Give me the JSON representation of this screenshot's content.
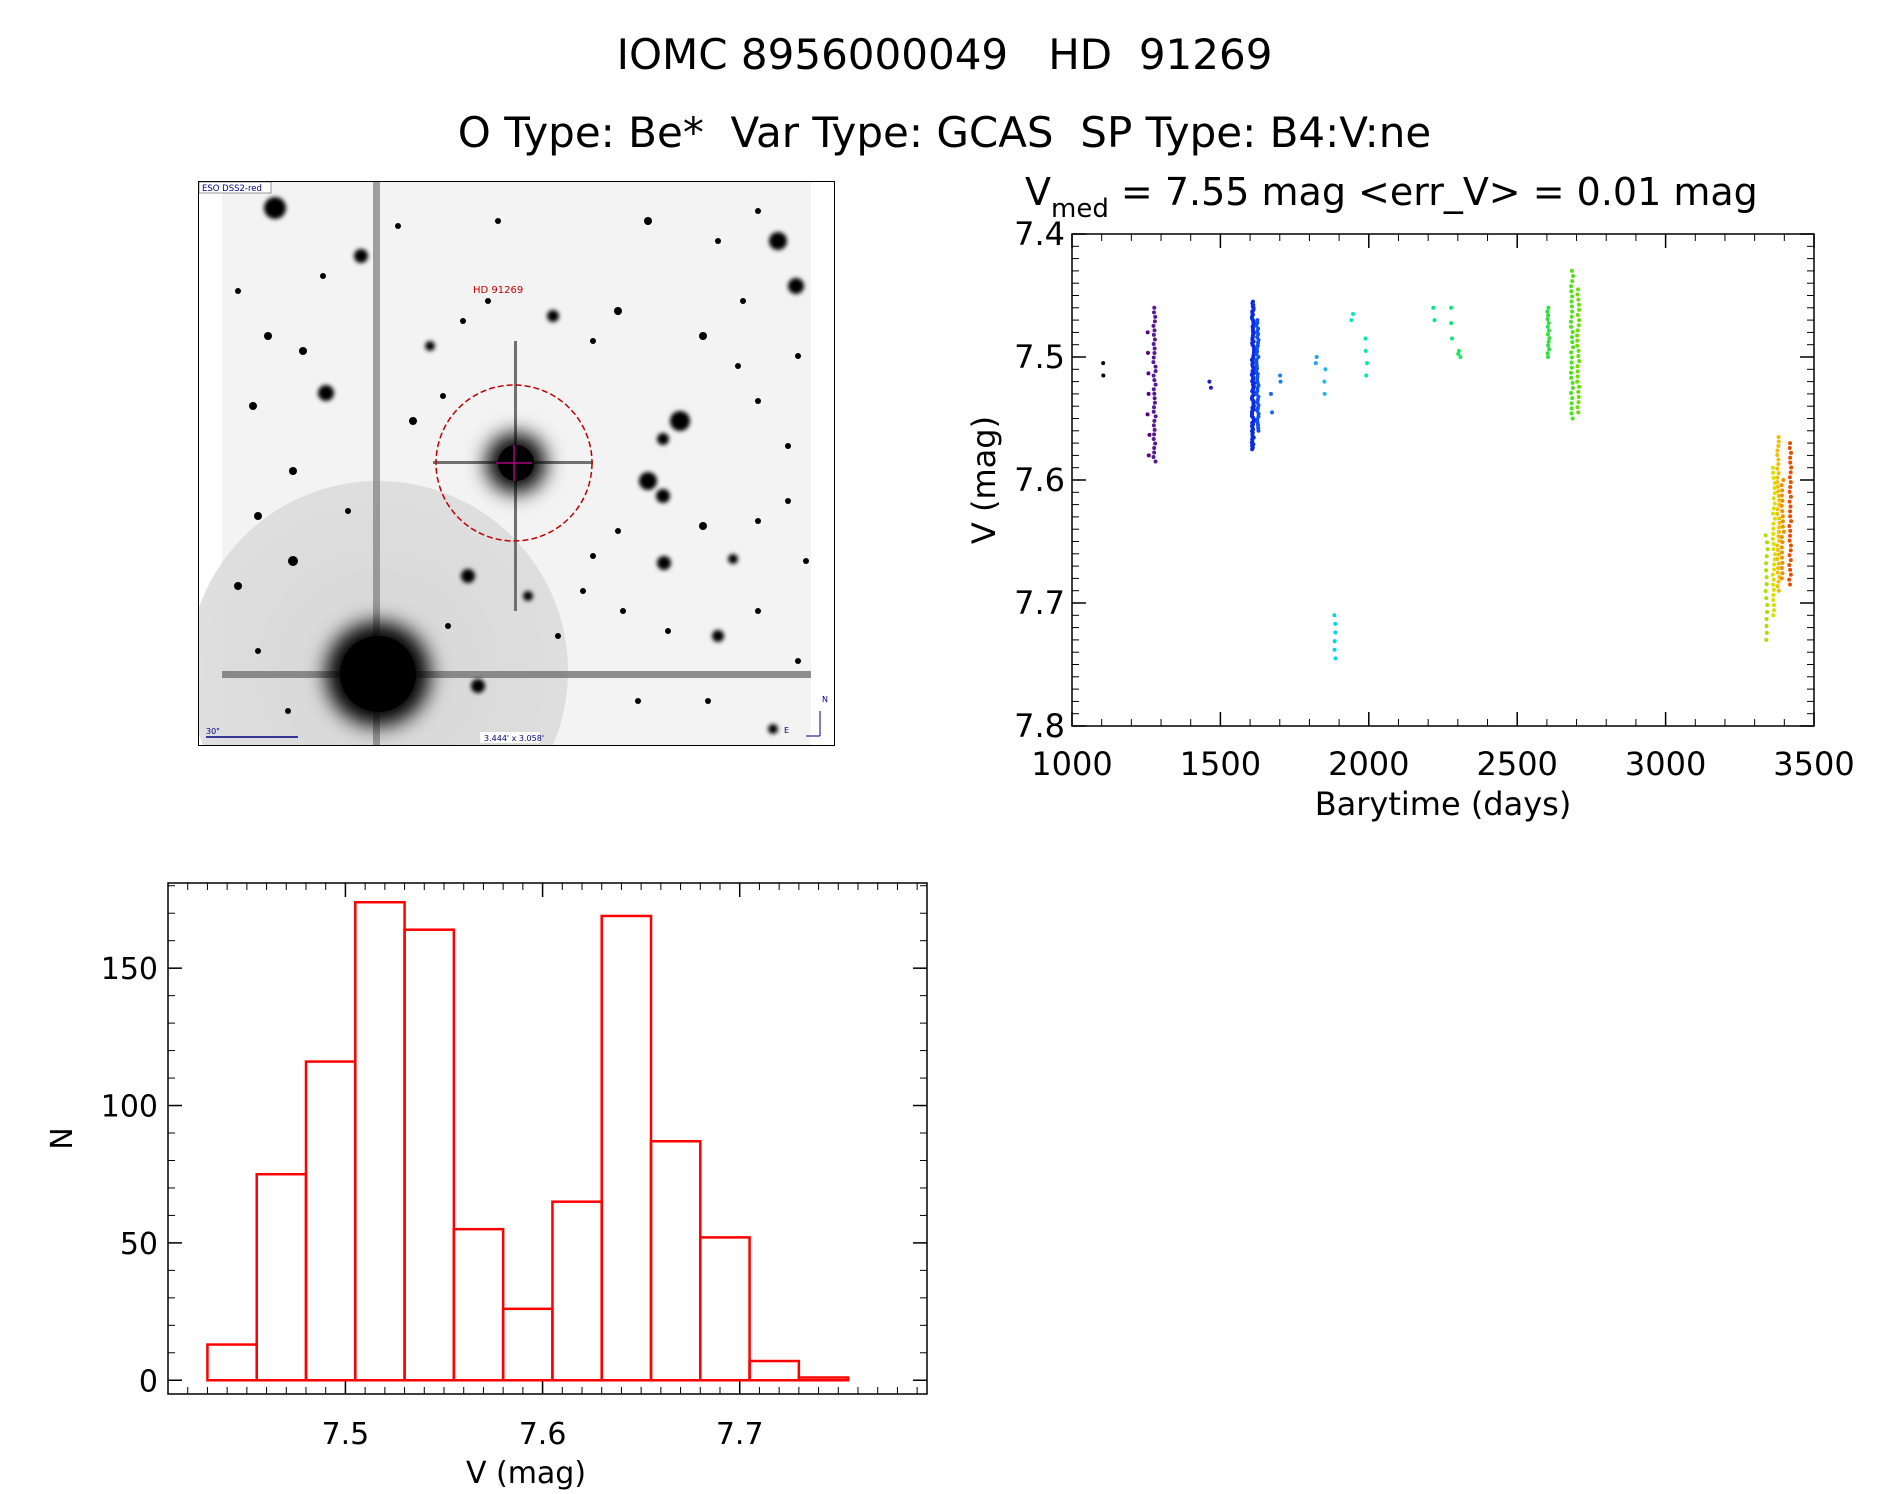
{
  "header": {
    "title_line1": "IOMC 8956000049   HD  91269",
    "title_line2": "O Type: Be*  Var Type: GCAS  SP Type: B4:V:ne"
  },
  "finder_chart": {
    "survey_label": "ESO DSS2-red",
    "target_label": "HD 91269",
    "scale_label": "30\"",
    "fov_label": "3.444' x 3.058'",
    "north_label": "N",
    "east_label": "E",
    "marker_color": "#c00000"
  },
  "chart_data": [
    {
      "type": "scatter",
      "title_prefix": "V",
      "title_subscript": "med",
      "title_rest": " = 7.55 mag <err_V> = 0.01 mag",
      "xlabel": "Barytime (days)",
      "ylabel": "V (mag)",
      "xlim": [
        1000,
        3500
      ],
      "ylim": [
        7.8,
        7.4
      ],
      "y_inverted": true,
      "xticks": [
        1000,
        1500,
        2000,
        2500,
        3000,
        3500
      ],
      "yticks": [
        7.4,
        7.5,
        7.6,
        7.7,
        7.8
      ],
      "ytick_labels": [
        "7.4",
        "7.5",
        "7.6",
        "7.7",
        "7.8"
      ],
      "groups": [
        {
          "x": 1105,
          "v_min": 7.505,
          "v_max": 7.515,
          "n": 2,
          "color": "#000000"
        },
        {
          "x": 1258,
          "v_min": 7.48,
          "v_max": 7.58,
          "n": 7,
          "color": "#5a0080"
        },
        {
          "x": 1278,
          "v_min": 7.46,
          "v_max": 7.585,
          "n": 35,
          "color": "#5a1898"
        },
        {
          "x": 1465,
          "v_min": 7.52,
          "v_max": 7.525,
          "n": 2,
          "color": "#2020c8"
        },
        {
          "x": 1610,
          "v_min": 7.455,
          "v_max": 7.575,
          "n": 90,
          "color": "#0a2ae8"
        },
        {
          "x": 1625,
          "v_min": 7.47,
          "v_max": 7.56,
          "n": 40,
          "color": "#1050f0"
        },
        {
          "x": 1670,
          "v_min": 7.53,
          "v_max": 7.545,
          "n": 2,
          "color": "#1a6af0"
        },
        {
          "x": 1700,
          "v_min": 7.515,
          "v_max": 7.52,
          "n": 2,
          "color": "#1a80f0"
        },
        {
          "x": 1825,
          "v_min": 7.5,
          "v_max": 7.505,
          "n": 2,
          "color": "#20a0f0"
        },
        {
          "x": 1850,
          "v_min": 7.51,
          "v_max": 7.53,
          "n": 3,
          "color": "#20b8f0"
        },
        {
          "x": 1885,
          "v_min": 7.71,
          "v_max": 7.745,
          "n": 6,
          "color": "#00d8e8"
        },
        {
          "x": 1945,
          "v_min": 7.465,
          "v_max": 7.47,
          "n": 2,
          "color": "#00e8c8"
        },
        {
          "x": 1990,
          "v_min": 7.485,
          "v_max": 7.515,
          "n": 4,
          "color": "#00e8b0"
        },
        {
          "x": 2220,
          "v_min": 7.46,
          "v_max": 7.47,
          "n": 2,
          "color": "#00e888"
        },
        {
          "x": 2280,
          "v_min": 7.46,
          "v_max": 7.485,
          "n": 3,
          "color": "#10e870"
        },
        {
          "x": 2305,
          "v_min": 7.495,
          "v_max": 7.5,
          "n": 3,
          "color": "#20e860"
        },
        {
          "x": 2605,
          "v_min": 7.46,
          "v_max": 7.5,
          "n": 14,
          "color": "#30e040"
        },
        {
          "x": 2685,
          "v_min": 7.43,
          "v_max": 7.55,
          "n": 30,
          "color": "#50e020"
        },
        {
          "x": 2705,
          "v_min": 7.445,
          "v_max": 7.545,
          "n": 25,
          "color": "#68e000"
        },
        {
          "x": 3340,
          "v_min": 7.645,
          "v_max": 7.73,
          "n": 16,
          "color": "#a8e000"
        },
        {
          "x": 3365,
          "v_min": 7.59,
          "v_max": 7.71,
          "n": 30,
          "color": "#d8e000"
        },
        {
          "x": 3380,
          "v_min": 7.565,
          "v_max": 7.69,
          "n": 35,
          "color": "#f0c000"
        },
        {
          "x": 3395,
          "v_min": 7.6,
          "v_max": 7.68,
          "n": 20,
          "color": "#f09000"
        },
        {
          "x": 3420,
          "v_min": 7.57,
          "v_max": 7.685,
          "n": 30,
          "color": "#e85000"
        }
      ]
    },
    {
      "type": "bar",
      "style": "step-histogram",
      "xlabel": "V (mag)",
      "ylabel": "N",
      "xlim": [
        7.41,
        7.795
      ],
      "ylim": [
        -5,
        181
      ],
      "xticks": [
        7.5,
        7.6,
        7.7
      ],
      "xtick_labels": [
        "7.5",
        "7.6",
        "7.7"
      ],
      "yticks": [
        0,
        50,
        100,
        150
      ],
      "ytick_labels": [
        "0",
        "50",
        "100",
        "150"
      ],
      "bin_edges": [
        7.43,
        7.455,
        7.48,
        7.505,
        7.53,
        7.555,
        7.58,
        7.605,
        7.63,
        7.655,
        7.68,
        7.705,
        7.73,
        7.755
      ],
      "values": [
        13,
        75,
        116,
        174,
        164,
        55,
        26,
        65,
        169,
        87,
        52,
        7,
        1
      ],
      "color": "#ff0000"
    }
  ]
}
